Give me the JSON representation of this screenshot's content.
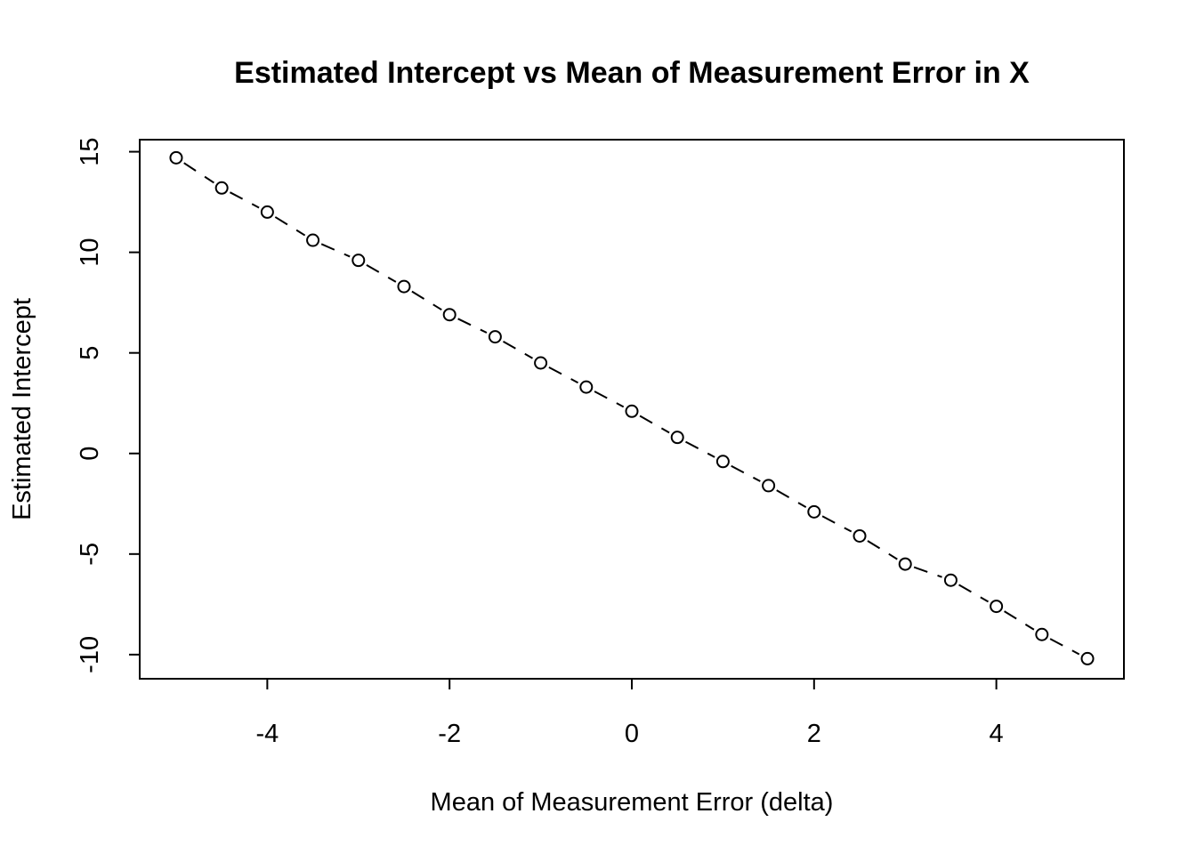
{
  "chart_data": {
    "type": "line",
    "style": "points-with-dashed-connectors",
    "title": "Estimated Intercept vs Mean of Measurement Error in X",
    "xlabel": "Mean of Measurement Error (delta)",
    "ylabel": "Estimated Intercept",
    "xlim": [
      -5.4,
      5.4
    ],
    "ylim": [
      -11.2,
      15.6
    ],
    "x_ticks": [
      -4,
      -2,
      0,
      2,
      4
    ],
    "x_tick_labels": [
      "-4",
      "-2",
      "0",
      "2",
      "4"
    ],
    "y_ticks": [
      -10,
      -5,
      0,
      5,
      10,
      15
    ],
    "y_tick_labels": [
      "-10",
      "-5",
      "0",
      "5",
      "10",
      "15"
    ],
    "grid": false,
    "series": [
      {
        "x": [
          -5,
          -4.5,
          -4,
          -3.5,
          -3,
          -2.5,
          -2,
          -1.5,
          -1,
          -0.5,
          0,
          0.5,
          1,
          1.5,
          2,
          2.5,
          3,
          3.5,
          4,
          4.5,
          5
        ],
        "y": [
          14.7,
          13.2,
          12.0,
          10.6,
          9.6,
          8.3,
          6.9,
          5.8,
          4.5,
          3.3,
          2.1,
          0.8,
          -0.4,
          -1.6,
          -2.9,
          -4.1,
          -5.5,
          -6.3,
          -7.6,
          -9.0,
          -10.2
        ]
      }
    ]
  }
}
